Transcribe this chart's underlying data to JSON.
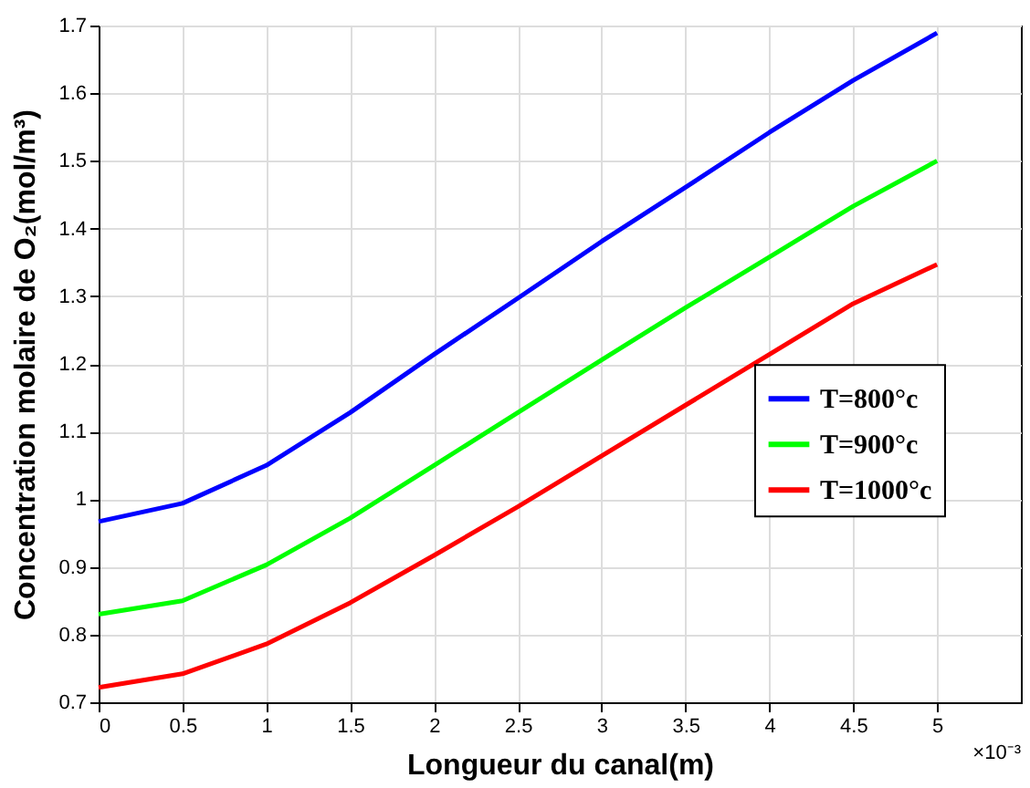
{
  "chart_data": {
    "type": "line",
    "xlabel": "Longueur du canal(m)",
    "ylabel": "Concentration molaire de O₂(mol/m³)",
    "x": [
      0,
      0.5,
      1,
      1.5,
      2,
      2.5,
      3,
      3.5,
      4,
      4.5,
      5
    ],
    "series": [
      {
        "name": "T=800°c",
        "color": "#0000ff",
        "values": [
          0.967,
          0.994,
          1.05,
          1.128,
          1.214,
          1.297,
          1.381,
          1.461,
          1.542,
          1.619,
          1.689
        ]
      },
      {
        "name": "T=900°c",
        "color": "#00ff00",
        "values": [
          0.83,
          0.85,
          0.903,
          0.972,
          1.05,
          1.128,
          1.206,
          1.283,
          1.358,
          1.433,
          1.5
        ]
      },
      {
        "name": "T=1000°c",
        "color": "#ff0000",
        "values": [
          0.722,
          0.742,
          0.786,
          0.847,
          0.917,
          0.989,
          1.064,
          1.139,
          1.214,
          1.289,
          1.347
        ]
      }
    ],
    "xlim": [
      0,
      5.5
    ],
    "xticks": [
      0,
      0.5,
      1,
      1.5,
      2,
      2.5,
      3,
      3.5,
      4,
      4.5,
      5
    ],
    "ylim": [
      0.7,
      1.7
    ],
    "yticks": [
      0.7,
      0.8,
      0.9,
      1,
      1.1,
      1.2,
      1.3,
      1.4,
      1.5,
      1.6,
      1.7
    ],
    "annotations": [
      "×10⁻³"
    ],
    "grid": true,
    "legend": "right",
    "marker": "none",
    "line_style": "solid"
  }
}
